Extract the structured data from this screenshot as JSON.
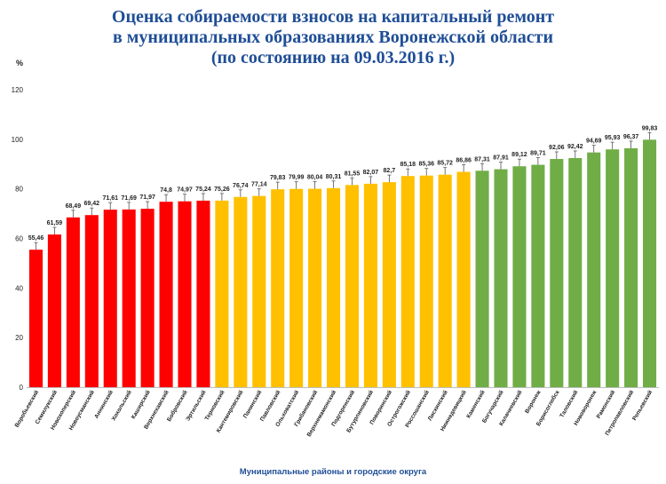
{
  "chart_data": {
    "type": "bar",
    "title": [
      "Оценка собираемости взносов на капитальный ремонт",
      "в муниципальных образованиях Воронежской области",
      "(по состоянию на 09.03.2016 г.)"
    ],
    "ylabel": "%",
    "xlabel": "Муниципальные районы и городские округа",
    "ylim": [
      0,
      120
    ],
    "yticks": [
      0,
      20,
      40,
      60,
      80,
      100,
      120
    ],
    "grid": false,
    "categories": [
      "Воробьевский",
      "Семилукский",
      "Новохоперский",
      "Новоусманский",
      "Аннинский",
      "Хохольский",
      "Каширский",
      "Верхнехавский",
      "Бобровский",
      "Эртильский",
      "Терновский",
      "Кантемировский",
      "Панинский",
      "Павловский",
      "Ольховатский",
      "Грибановский",
      "Верхнемамонский",
      "Подгоренский",
      "Бутурлиновский",
      "Поворинский",
      "Острогожский",
      "Россошанский",
      "Лискинский",
      "Нижнедевицкий",
      "Каменский",
      "Богучарский",
      "Калачеевский",
      "Воронеж",
      "Борисоглебск",
      "Таловский",
      "Нововоронеж",
      "Рамонский",
      "Петропавловский",
      "Репьевский"
    ],
    "values": [
      55.46,
      61.59,
      68.49,
      69.42,
      71.61,
      71.69,
      71.97,
      74.8,
      74.97,
      75.24,
      75.26,
      76.74,
      77.14,
      79.83,
      79.99,
      80.04,
      80.31,
      81.55,
      82.07,
      82.7,
      85.18,
      85.36,
      85.72,
      86.86,
      87.31,
      87.91,
      89.12,
      89.71,
      92.06,
      92.42,
      94.69,
      95.93,
      96.37,
      99.83
    ],
    "value_labels": [
      "55,46",
      "61,59",
      "68,49",
      "69,42",
      "71,61",
      "71,69",
      "71,97",
      "74,8",
      "74,97",
      "75,24",
      "75,26",
      "76,74",
      "77,14",
      "79,83",
      "79,99",
      "80,04",
      "80,31",
      "81,55",
      "82,07",
      "82,7",
      "85,18",
      "85,36",
      "85,72",
      "86,86",
      "87,31",
      "87,91",
      "89,12",
      "89,71",
      "92,06",
      "92,42",
      "94,69",
      "95,93",
      "96,37",
      "99,83"
    ],
    "colors": [
      "#ff0000",
      "#ff0000",
      "#ff0000",
      "#ff0000",
      "#ff0000",
      "#ff0000",
      "#ff0000",
      "#ff0000",
      "#ff0000",
      "#ff0000",
      "#ffc000",
      "#ffc000",
      "#ffc000",
      "#ffc000",
      "#ffc000",
      "#ffc000",
      "#ffc000",
      "#ffc000",
      "#ffc000",
      "#ffc000",
      "#ffc000",
      "#ffc000",
      "#ffc000",
      "#ffc000",
      "#70ad47",
      "#70ad47",
      "#70ad47",
      "#70ad47",
      "#70ad47",
      "#70ad47",
      "#70ad47",
      "#70ad47",
      "#70ad47",
      "#70ad47"
    ]
  }
}
